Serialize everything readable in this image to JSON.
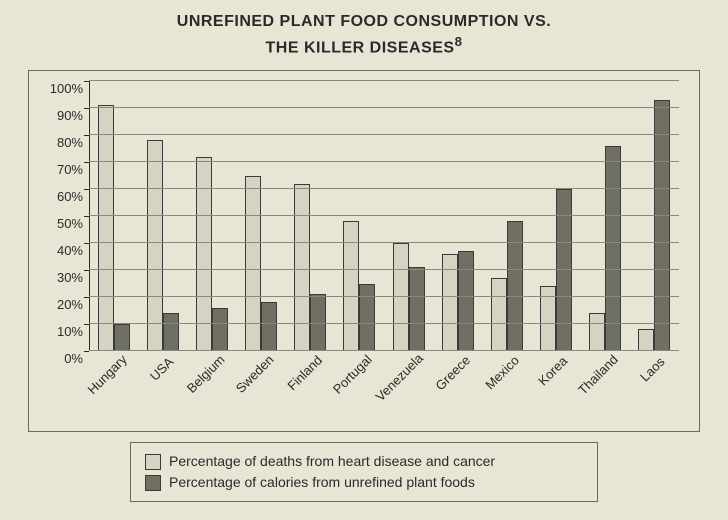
{
  "title_line1": "UNREFINED PLANT FOOD CONSUMPTION VS.",
  "title_line2": "THE KILLER DISEASES",
  "title_sup": "8",
  "chart": {
    "type": "bar",
    "background_color": "#e8e5d4",
    "grid_color": "#8a8a7a",
    "axis_color": "#2a2a2a",
    "bar_light_color": "#d6d3c2",
    "bar_dark_color": "#6f6f63",
    "bar_border_color": "#3a3a3a",
    "ylim": [
      0,
      100
    ],
    "ytick_step": 10,
    "y_ticks": [
      {
        "v": 0,
        "label": "0%"
      },
      {
        "v": 10,
        "label": "10%"
      },
      {
        "v": 20,
        "label": "20%"
      },
      {
        "v": 30,
        "label": "30%"
      },
      {
        "v": 40,
        "label": "40%"
      },
      {
        "v": 50,
        "label": "50%"
      },
      {
        "v": 60,
        "label": "60%"
      },
      {
        "v": 70,
        "label": "70%"
      },
      {
        "v": 80,
        "label": "80%"
      },
      {
        "v": 90,
        "label": "90%"
      },
      {
        "v": 100,
        "label": "100%"
      }
    ],
    "categories": [
      {
        "name": "Hungary",
        "deaths": 91,
        "plant": 10
      },
      {
        "name": "USA",
        "deaths": 78,
        "plant": 14
      },
      {
        "name": "Belgium",
        "deaths": 72,
        "plant": 16
      },
      {
        "name": "Sweden",
        "deaths": 65,
        "plant": 18
      },
      {
        "name": "Finland",
        "deaths": 62,
        "plant": 21
      },
      {
        "name": "Portugal",
        "deaths": 48,
        "plant": 25
      },
      {
        "name": "Venezuela",
        "deaths": 40,
        "plant": 31
      },
      {
        "name": "Greece",
        "deaths": 36,
        "plant": 37
      },
      {
        "name": "Mexico",
        "deaths": 27,
        "plant": 48
      },
      {
        "name": "Korea",
        "deaths": 24,
        "plant": 60
      },
      {
        "name": "Thailand",
        "deaths": 14,
        "plant": 76
      },
      {
        "name": "Laos",
        "deaths": 8,
        "plant": 93
      }
    ]
  },
  "legend": {
    "series1": "Percentage of deaths from heart disease and cancer",
    "series2": "Percentage of calories from unrefined plant foods"
  }
}
